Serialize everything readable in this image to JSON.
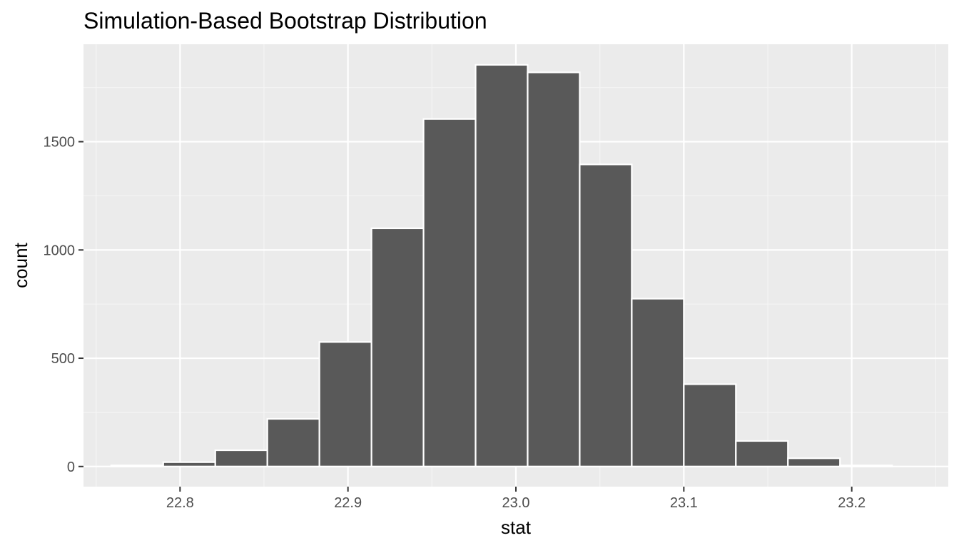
{
  "chart_data": {
    "type": "bar",
    "title": "Simulation-Based Bootstrap Distribution",
    "xlabel": "stat",
    "ylabel": "count",
    "xlim": [
      22.7425,
      23.2575
    ],
    "ylim": [
      -93,
      1950
    ],
    "x_ticks": [
      22.8,
      22.9,
      23.0,
      23.1,
      23.2
    ],
    "x_tick_labels": [
      "22.8",
      "22.9",
      "23.0",
      "23.1",
      "23.2"
    ],
    "y_ticks": [
      0,
      500,
      1000,
      1500
    ],
    "y_tick_labels": [
      "0",
      "500",
      "1000",
      "1500"
    ],
    "bin_width": 0.031,
    "bins": [
      {
        "x0": 22.759,
        "x1": 22.79,
        "count": 5
      },
      {
        "x0": 22.79,
        "x1": 22.821,
        "count": 20
      },
      {
        "x0": 22.821,
        "x1": 22.852,
        "count": 75
      },
      {
        "x0": 22.852,
        "x1": 22.883,
        "count": 220
      },
      {
        "x0": 22.883,
        "x1": 22.914,
        "count": 575
      },
      {
        "x0": 22.914,
        "x1": 22.945,
        "count": 1100
      },
      {
        "x0": 22.945,
        "x1": 22.976,
        "count": 1605
      },
      {
        "x0": 22.976,
        "x1": 23.007,
        "count": 1855
      },
      {
        "x0": 23.007,
        "x1": 23.038,
        "count": 1820
      },
      {
        "x0": 23.038,
        "x1": 23.069,
        "count": 1395
      },
      {
        "x0": 23.069,
        "x1": 23.1,
        "count": 775
      },
      {
        "x0": 23.1,
        "x1": 23.131,
        "count": 380
      },
      {
        "x0": 23.131,
        "x1": 23.162,
        "count": 118
      },
      {
        "x0": 23.162,
        "x1": 23.193,
        "count": 38
      },
      {
        "x0": 23.193,
        "x1": 23.224,
        "count": 5
      }
    ],
    "grid": true,
    "legend": "none",
    "colors": {
      "panel_background": "#ebebeb",
      "grid_major": "#ffffff",
      "grid_minor": "#f5f5f5",
      "bar_fill": "#595959",
      "bar_outline": "#ffffff",
      "tick_mark": "#333333"
    }
  }
}
